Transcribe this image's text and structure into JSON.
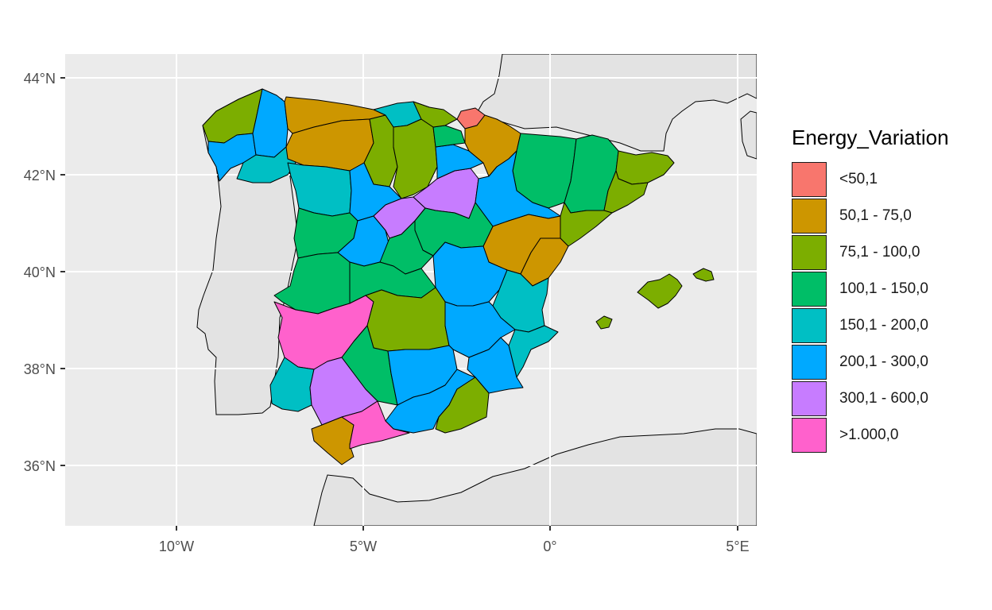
{
  "chart": {
    "type": "choropleth map",
    "x_axis": {
      "ticks": [
        {
          "label": "10°W",
          "value": -10
        },
        {
          "label": "5°W",
          "value": -5
        },
        {
          "label": "0°",
          "value": 0
        },
        {
          "label": "5°E",
          "value": 5
        }
      ]
    },
    "y_axis": {
      "ticks": [
        {
          "label": "44°N",
          "value": 44
        },
        {
          "label": "42°N",
          "value": 42
        },
        {
          "label": "40°N",
          "value": 40
        },
        {
          "label": "38°N",
          "value": 38
        },
        {
          "label": "36°N",
          "value": 36
        }
      ]
    },
    "colors": {
      "panel": "#ebebeb",
      "land": "#e3e3e3",
      "grid": "#ffffff",
      "border": "#000000"
    }
  },
  "legend": {
    "title": "Energy_Variation",
    "items": [
      {
        "label": "<50,1",
        "color": "#F8766D"
      },
      {
        "label": "50,1 - 75,0",
        "color": "#CD9600"
      },
      {
        "label": "75,1 - 100,0",
        "color": "#7CAE00"
      },
      {
        "label": "100,1 - 150,0",
        "color": "#00BE67"
      },
      {
        "label": "150,1 - 200,0",
        "color": "#00BFC4"
      },
      {
        "label": "200,1 - 300,0",
        "color": "#00A9FF"
      },
      {
        "label": "300,1 - 600,0",
        "color": "#C77CFF"
      },
      {
        "label": ">1.000,0",
        "color": "#FF61CC"
      }
    ]
  }
}
